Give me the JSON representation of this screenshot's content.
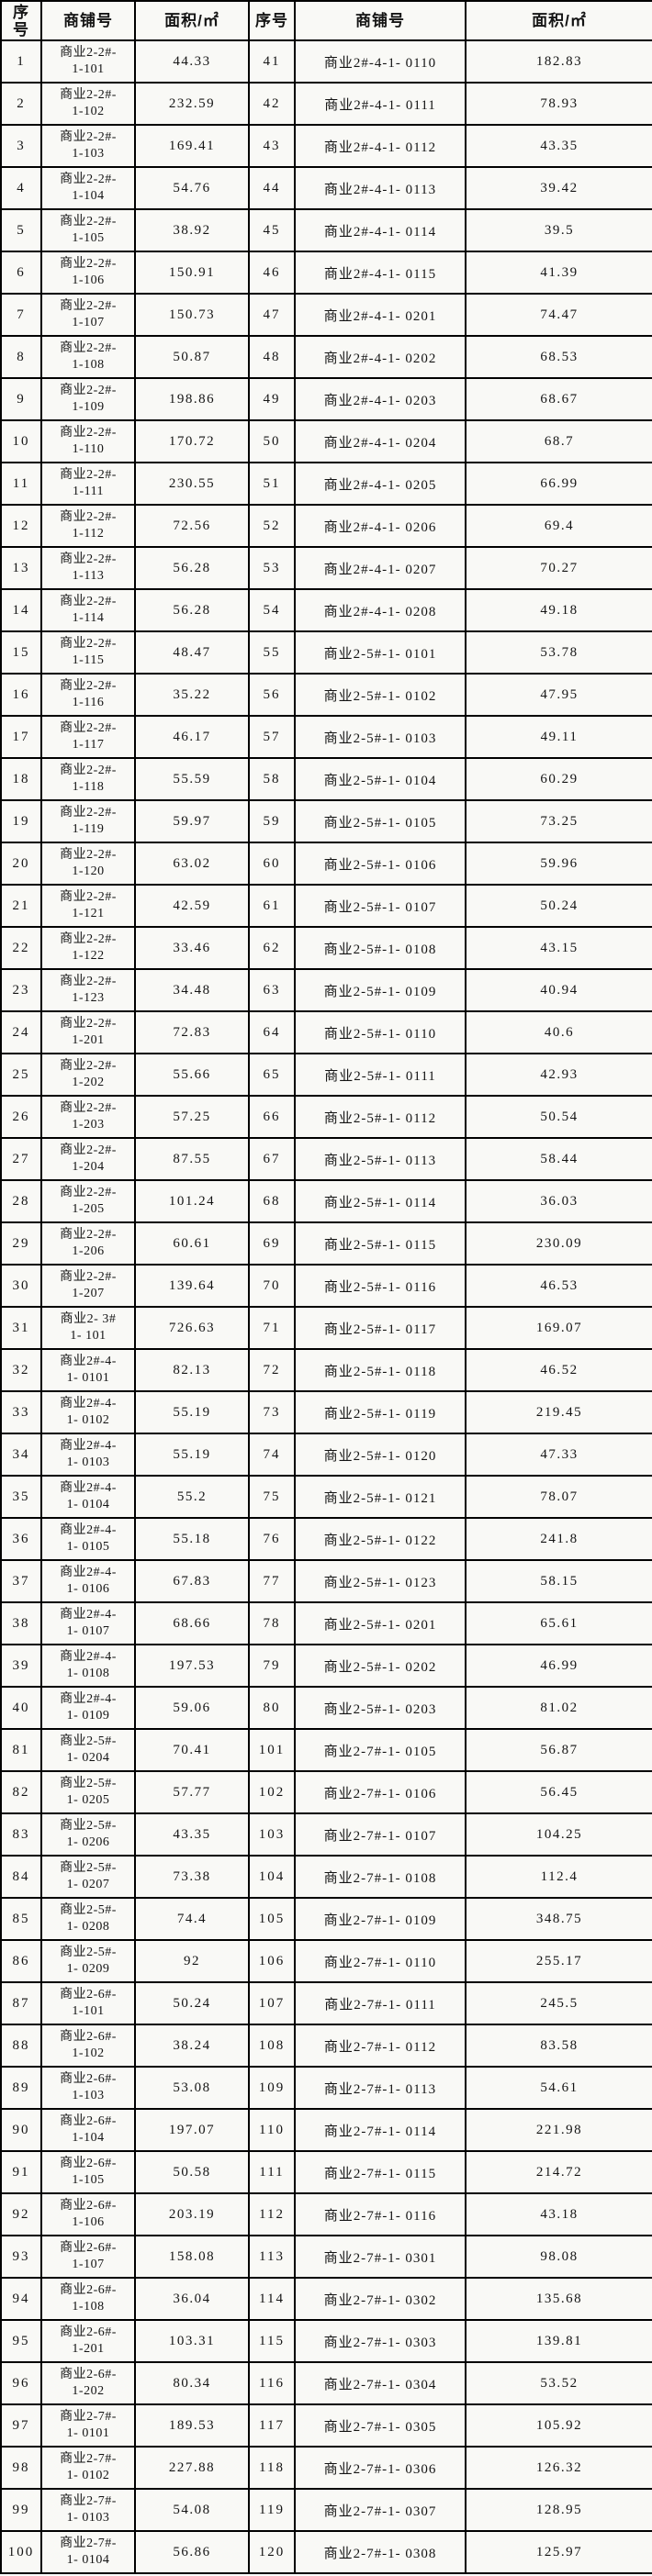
{
  "table": {
    "headers": [
      "序\n号",
      "商铺号",
      "面积/㎡",
      "序号",
      "商铺号",
      "面积/㎡"
    ],
    "rows": [
      [
        "1",
        "商业2-2#-\n1-101",
        "44.33",
        "41",
        "商业2#-4-1- 0110",
        "182.83"
      ],
      [
        "2",
        "商业2-2#-\n1-102",
        "232.59",
        "42",
        "商业2#-4-1- 0111",
        "78.93"
      ],
      [
        "3",
        "商业2-2#-\n1-103",
        "169.41",
        "43",
        "商业2#-4-1- 0112",
        "43.35"
      ],
      [
        "4",
        "商业2-2#-\n1-104",
        "54.76",
        "44",
        "商业2#-4-1- 0113",
        "39.42"
      ],
      [
        "5",
        "商业2-2#-\n1-105",
        "38.92",
        "45",
        "商业2#-4-1- 0114",
        "39.5"
      ],
      [
        "6",
        "商业2-2#-\n1-106",
        "150.91",
        "46",
        "商业2#-4-1- 0115",
        "41.39"
      ],
      [
        "7",
        "商业2-2#-\n1-107",
        "150.73",
        "47",
        "商业2#-4-1- 0201",
        "74.47"
      ],
      [
        "8",
        "商业2-2#-\n1-108",
        "50.87",
        "48",
        "商业2#-4-1- 0202",
        "68.53"
      ],
      [
        "9",
        "商业2-2#-\n1-109",
        "198.86",
        "49",
        "商业2#-4-1- 0203",
        "68.67"
      ],
      [
        "10",
        "商业2-2#-\n1-110",
        "170.72",
        "50",
        "商业2#-4-1- 0204",
        "68.7"
      ],
      [
        "11",
        "商业2-2#-\n1-111",
        "230.55",
        "51",
        "商业2#-4-1- 0205",
        "66.99"
      ],
      [
        "12",
        "商业2-2#-\n1-112",
        "72.56",
        "52",
        "商业2#-4-1- 0206",
        "69.4"
      ],
      [
        "13",
        "商业2-2#-\n1-113",
        "56.28",
        "53",
        "商业2#-4-1- 0207",
        "70.27"
      ],
      [
        "14",
        "商业2-2#-\n1-114",
        "56.28",
        "54",
        "商业2#-4-1- 0208",
        "49.18"
      ],
      [
        "15",
        "商业2-2#-\n1-115",
        "48.47",
        "55",
        "商业2-5#-1- 0101",
        "53.78"
      ],
      [
        "16",
        "商业2-2#-\n1-116",
        "35.22",
        "56",
        "商业2-5#-1- 0102",
        "47.95"
      ],
      [
        "17",
        "商业2-2#-\n1-117",
        "46.17",
        "57",
        "商业2-5#-1- 0103",
        "49.11"
      ],
      [
        "18",
        "商业2-2#-\n1-118",
        "55.59",
        "58",
        "商业2-5#-1- 0104",
        "60.29"
      ],
      [
        "19",
        "商业2-2#-\n1-119",
        "59.97",
        "59",
        "商业2-5#-1- 0105",
        "73.25"
      ],
      [
        "20",
        "商业2-2#-\n1-120",
        "63.02",
        "60",
        "商业2-5#-1- 0106",
        "59.96"
      ],
      [
        "21",
        "商业2-2#-\n1-121",
        "42.59",
        "61",
        "商业2-5#-1- 0107",
        "50.24"
      ],
      [
        "22",
        "商业2-2#-\n1-122",
        "33.46",
        "62",
        "商业2-5#-1- 0108",
        "43.15"
      ],
      [
        "23",
        "商业2-2#-\n1-123",
        "34.48",
        "63",
        "商业2-5#-1- 0109",
        "40.94"
      ],
      [
        "24",
        "商业2-2#-\n1-201",
        "72.83",
        "64",
        "商业2-5#-1- 0110",
        "40.6"
      ],
      [
        "25",
        "商业2-2#-\n1-202",
        "55.66",
        "65",
        "商业2-5#-1- 0111",
        "42.93"
      ],
      [
        "26",
        "商业2-2#-\n1-203",
        "57.25",
        "66",
        "商业2-5#-1- 0112",
        "50.54"
      ],
      [
        "27",
        "商业2-2#-\n1-204",
        "87.55",
        "67",
        "商业2-5#-1- 0113",
        "58.44"
      ],
      [
        "28",
        "商业2-2#-\n1-205",
        "101.24",
        "68",
        "商业2-5#-1- 0114",
        "36.03"
      ],
      [
        "29",
        "商业2-2#-\n1-206",
        "60.61",
        "69",
        "商业2-5#-1- 0115",
        "230.09"
      ],
      [
        "30",
        "商业2-2#-\n1-207",
        "139.64",
        "70",
        "商业2-5#-1- 0116",
        "46.53"
      ],
      [
        "31",
        "商业2- 3#\n1- 101",
        "726.63",
        "71",
        "商业2-5#-1- 0117",
        "169.07"
      ],
      [
        "32",
        "商业2#-4-\n1- 0101",
        "82.13",
        "72",
        "商业2-5#-1- 0118",
        "46.52"
      ],
      [
        "33",
        "商业2#-4-\n1- 0102",
        "55.19",
        "73",
        "商业2-5#-1- 0119",
        "219.45"
      ],
      [
        "34",
        "商业2#-4-\n1- 0103",
        "55.19",
        "74",
        "商业2-5#-1- 0120",
        "47.33"
      ],
      [
        "35",
        "商业2#-4-\n1- 0104",
        "55.2",
        "75",
        "商业2-5#-1- 0121",
        "78.07"
      ],
      [
        "36",
        "商业2#-4-\n1- 0105",
        "55.18",
        "76",
        "商业2-5#-1- 0122",
        "241.8"
      ],
      [
        "37",
        "商业2#-4-\n1- 0106",
        "67.83",
        "77",
        "商业2-5#-1- 0123",
        "58.15"
      ],
      [
        "38",
        "商业2#-4-\n1- 0107",
        "68.66",
        "78",
        "商业2-5#-1- 0201",
        "65.61"
      ],
      [
        "39",
        "商业2#-4-\n1- 0108",
        "197.53",
        "79",
        "商业2-5#-1- 0202",
        "46.99"
      ],
      [
        "40",
        "商业2#-4-\n1- 0109",
        "59.06",
        "80",
        "商业2-5#-1- 0203",
        "81.02"
      ],
      [
        "81",
        "商业2-5#-\n1- 0204",
        "70.41",
        "101",
        "商业2-7#-1- 0105",
        "56.87"
      ],
      [
        "82",
        "商业2-5#-\n1- 0205",
        "57.77",
        "102",
        "商业2-7#-1- 0106",
        "56.45"
      ],
      [
        "83",
        "商业2-5#-\n1- 0206",
        "43.35",
        "103",
        "商业2-7#-1- 0107",
        "104.25"
      ],
      [
        "84",
        "商业2-5#-\n1- 0207",
        "73.38",
        "104",
        "商业2-7#-1- 0108",
        "112.4"
      ],
      [
        "85",
        "商业2-5#-\n1- 0208",
        "74.4",
        "105",
        "商业2-7#-1- 0109",
        "348.75"
      ],
      [
        "86",
        "商业2-5#-\n1- 0209",
        "92",
        "106",
        "商业2-7#-1- 0110",
        "255.17"
      ],
      [
        "87",
        "商业2-6#-\n1-101",
        "50.24",
        "107",
        "商业2-7#-1- 0111",
        "245.5"
      ],
      [
        "88",
        "商业2-6#-\n1-102",
        "38.24",
        "108",
        "商业2-7#-1- 0112",
        "83.58"
      ],
      [
        "89",
        "商业2-6#-\n1-103",
        "53.08",
        "109",
        "商业2-7#-1- 0113",
        "54.61"
      ],
      [
        "90",
        "商业2-6#-\n1-104",
        "197.07",
        "110",
        "商业2-7#-1- 0114",
        "221.98"
      ],
      [
        "91",
        "商业2-6#-\n1-105",
        "50.58",
        "111",
        "商业2-7#-1- 0115",
        "214.72"
      ],
      [
        "92",
        "商业2-6#-\n1-106",
        "203.19",
        "112",
        "商业2-7#-1- 0116",
        "43.18"
      ],
      [
        "93",
        "商业2-6#-\n1-107",
        "158.08",
        "113",
        "商业2-7#-1- 0301",
        "98.08"
      ],
      [
        "94",
        "商业2-6#-\n1-108",
        "36.04",
        "114",
        "商业2-7#-1- 0302",
        "135.68"
      ],
      [
        "95",
        "商业2-6#-\n1-201",
        "103.31",
        "115",
        "商业2-7#-1- 0303",
        "139.81"
      ],
      [
        "96",
        "商业2-6#-\n1-202",
        "80.34",
        "116",
        "商业2-7#-1- 0304",
        "53.52"
      ],
      [
        "97",
        "商业2-7#-\n1- 0101",
        "189.53",
        "117",
        "商业2-7#-1- 0305",
        "105.92"
      ],
      [
        "98",
        "商业2-7#-\n1- 0102",
        "227.88",
        "118",
        "商业2-7#-1- 0306",
        "126.32"
      ],
      [
        "99",
        "商业2-7#-\n1- 0103",
        "54.08",
        "119",
        "商业2-7#-1- 0307",
        "128.95"
      ],
      [
        "100",
        "商业2-7#-\n1- 0104",
        "56.86",
        "120",
        "商业2-7#-1- 0308",
        "125.97"
      ]
    ]
  },
  "colors": {
    "border": "#000000",
    "cell_background": "#f9f9f6",
    "text": "#141414"
  }
}
